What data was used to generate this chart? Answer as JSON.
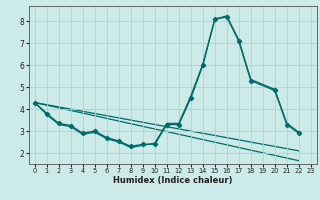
{
  "xlabel": "Humidex (Indice chaleur)",
  "bg_color": "#cceae7",
  "grid_color": "#aad4d0",
  "line_color": "#006b6b",
  "xlim": [
    -0.5,
    23.5
  ],
  "ylim": [
    1.5,
    8.7
  ],
  "xticks": [
    0,
    1,
    2,
    3,
    4,
    5,
    6,
    7,
    8,
    9,
    10,
    11,
    12,
    13,
    14,
    15,
    16,
    17,
    18,
    19,
    20,
    21,
    22,
    23
  ],
  "yticks": [
    2,
    3,
    4,
    5,
    6,
    7,
    8
  ],
  "series0_x": [
    0,
    1,
    2,
    3,
    4,
    5,
    6,
    7,
    8,
    9,
    10,
    11,
    12,
    13,
    14,
    15,
    16,
    17,
    18,
    20,
    21,
    22
  ],
  "series0_y": [
    4.3,
    3.8,
    3.35,
    3.25,
    2.9,
    3.0,
    2.7,
    2.55,
    2.3,
    2.4,
    2.4,
    3.3,
    3.3,
    4.5,
    6.0,
    8.1,
    8.2,
    7.1,
    5.3,
    4.85,
    3.3,
    2.9
  ],
  "series1_x": [
    0,
    1,
    2,
    3,
    4,
    5,
    6,
    7,
    8,
    9,
    10,
    11,
    12,
    13,
    14,
    15,
    16,
    17,
    18,
    20,
    21,
    22
  ],
  "series1_y": [
    4.3,
    3.75,
    3.3,
    3.2,
    2.85,
    2.95,
    2.65,
    2.5,
    2.25,
    2.35,
    2.45,
    3.35,
    3.35,
    4.6,
    6.05,
    8.1,
    8.25,
    7.15,
    5.35,
    4.9,
    3.35,
    2.95
  ],
  "line2_x": [
    0,
    22
  ],
  "line2_y": [
    4.3,
    1.65
  ],
  "line3_x": [
    0,
    22
  ],
  "line3_y": [
    4.3,
    2.1
  ]
}
